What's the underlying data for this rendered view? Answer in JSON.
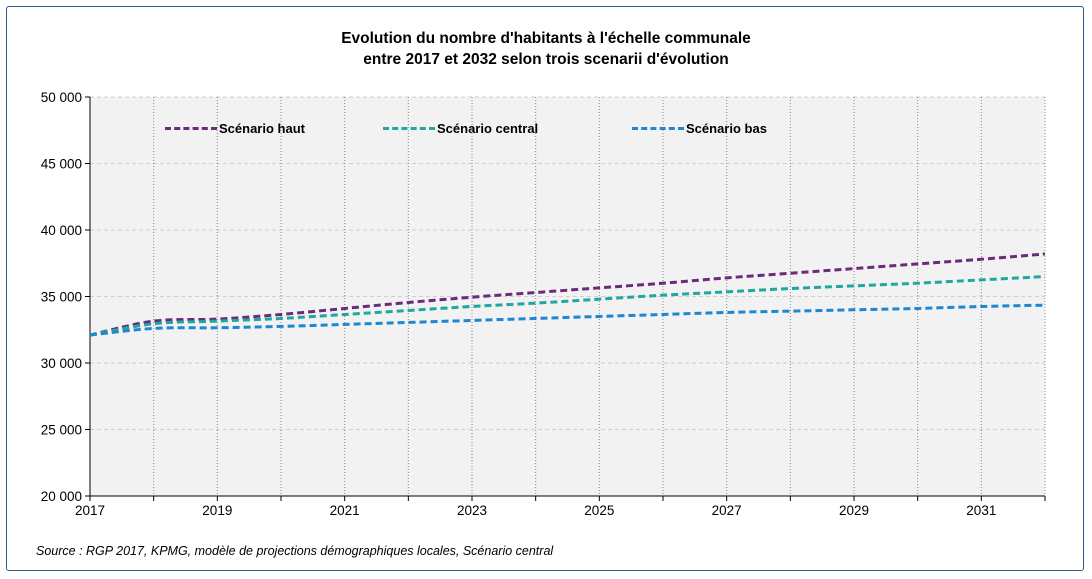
{
  "title": {
    "line1": "Evolution du nombre d'habitants à l'échelle communale",
    "line2": "entre 2017 et 2032 selon trois scenarii d'évolution"
  },
  "source": "Source : RGP 2017, KPMG, modèle de projections démographiques locales, Scénario central",
  "colors": {
    "frame": "#2e5a8a",
    "plot_background": "#f2f2f2",
    "grid": "#cfcfcf",
    "haut": "#6b2a7e",
    "central": "#1fa7a0",
    "bas": "#1f86d1"
  },
  "chart_data": {
    "type": "line",
    "title": "Evolution du nombre d'habitants à l'échelle communale entre 2017 et 2032 selon trois scenarii d'évolution",
    "xlabel": "",
    "ylabel": "",
    "xlim": [
      2017,
      2032
    ],
    "ylim": [
      20000,
      50000
    ],
    "x_ticks": [
      2017,
      2019,
      2021,
      2023,
      2025,
      2027,
      2029,
      2031
    ],
    "x_tick_labels": [
      "2017",
      "2019",
      "2021",
      "2023",
      "2025",
      "2027",
      "2029",
      "2031"
    ],
    "y_ticks": [
      20000,
      25000,
      30000,
      35000,
      40000,
      45000,
      50000
    ],
    "y_tick_labels": [
      "20 000",
      "25 000",
      "30 000",
      "35 000",
      "40 000",
      "45 000",
      "50 000"
    ],
    "grid": "vertical dotted lines at each year, horizontal dashed lines at each y tick",
    "legend_position": "top-left, inside plot",
    "x": [
      2017,
      2018,
      2019,
      2020,
      2021,
      2022,
      2023,
      2024,
      2025,
      2026,
      2027,
      2028,
      2029,
      2030,
      2031,
      2032
    ],
    "series": [
      {
        "name": "Scénario haut",
        "color": "#6b2a7e",
        "style": "dashed",
        "values": [
          32100,
          33150,
          33300,
          33650,
          34100,
          34550,
          34950,
          35300,
          35650,
          36000,
          36400,
          36750,
          37100,
          37450,
          37800,
          38200
        ]
      },
      {
        "name": "Scénario central",
        "color": "#1fa7a0",
        "style": "dashed",
        "values": [
          32100,
          32950,
          33150,
          33350,
          33650,
          33950,
          34250,
          34500,
          34800,
          35100,
          35350,
          35600,
          35800,
          36000,
          36250,
          36500
        ]
      },
      {
        "name": "Scénario bas",
        "color": "#1f86d1",
        "style": "dashed",
        "values": [
          32100,
          32600,
          32650,
          32750,
          32900,
          33050,
          33200,
          33350,
          33500,
          33650,
          33800,
          33900,
          34000,
          34100,
          34250,
          34350
        ]
      }
    ]
  }
}
